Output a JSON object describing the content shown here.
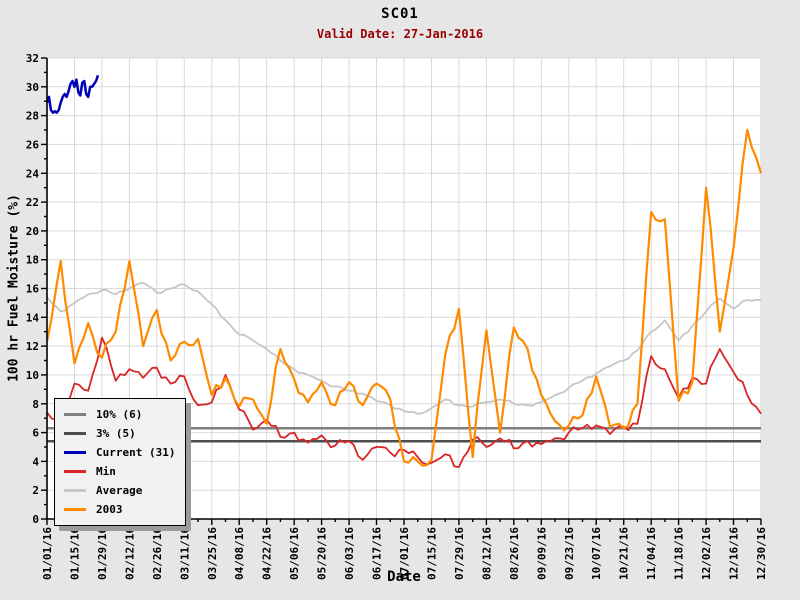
{
  "header": {
    "title": "SC01",
    "subtitle": "Valid Date: 27-Jan-2016"
  },
  "colors": {
    "page_bg": "#e6e6e6",
    "plot_bg": "#ffffff",
    "grid": "#d9d9d9",
    "axis": "#000000",
    "subtitle_text": "#990000",
    "legend_bg": "#f1f1f1",
    "legend_shadow": "#9b9b9b"
  },
  "chart_data": {
    "type": "line",
    "title": "SC01",
    "subtitle": "Valid Date: 27-Jan-2016",
    "xlabel": "Date",
    "ylabel": "100 hr Fuel Moisture (%)",
    "ylim": [
      0,
      32
    ],
    "y_major_tick_step": 2,
    "y_minor_tick_step": 1,
    "grid": true,
    "legend_position": "bottom-left",
    "x_range_days": [
      0,
      364
    ],
    "x_tick_interval_days": 14,
    "x_minor_tick_interval_days": 7,
    "x_tick_labels": [
      "01/01/16",
      "01/15/16",
      "01/29/16",
      "02/12/16",
      "02/26/16",
      "03/11/16",
      "03/25/16",
      "04/08/16",
      "04/22/16",
      "05/06/16",
      "05/20/16",
      "06/03/16",
      "06/17/16",
      "07/01/16",
      "07/15/16",
      "07/29/16",
      "08/12/16",
      "08/26/16",
      "09/09/16",
      "09/23/16",
      "10/07/16",
      "10/21/16",
      "11/04/16",
      "11/18/16",
      "12/02/16",
      "12/16/16",
      "12/30/16"
    ],
    "series": [
      {
        "name": "10% (6)",
        "type": "hline",
        "value": 6.3,
        "color": "#7f7f7f",
        "width": 2.5
      },
      {
        "name": "3% (5)",
        "type": "hline",
        "value": 5.4,
        "color": "#4d4d4d",
        "width": 2.5
      },
      {
        "name": "Current (31)",
        "type": "line",
        "color": "#0000bb",
        "width": 2.5,
        "start_day": 0,
        "step_days": 1,
        "values": [
          28.9,
          29.3,
          28.4,
          28.2,
          28.3,
          28.2,
          28.4,
          28.9,
          29.3,
          29.5,
          29.3,
          29.7,
          30.2,
          30.4,
          30.0,
          30.5,
          29.6,
          29.4,
          30.3,
          30.4,
          29.5,
          29.3,
          30.0,
          30.0,
          30.2,
          30.4,
          30.8
        ]
      },
      {
        "name": "Min",
        "type": "line",
        "color": "#d92525",
        "width": 1.8,
        "start_day": 0,
        "step_days": 7,
        "values": [
          7.4,
          6.6,
          9.4,
          8.9,
          12.6,
          9.6,
          10.4,
          9.8,
          10.5,
          9.4,
          9.9,
          7.9,
          8.1,
          10.0,
          7.6,
          6.2,
          6.9,
          5.7,
          6.0,
          5.3,
          5.8,
          5.1,
          5.4,
          4.1,
          5.0,
          4.6,
          4.8,
          4.3,
          3.9,
          4.5,
          3.6,
          5.5,
          5.0,
          5.6,
          4.9,
          5.4,
          5.2,
          5.6,
          6.0,
          6.3,
          6.5,
          5.9,
          6.4,
          6.6,
          11.3,
          10.4,
          8.4,
          9.8,
          9.4,
          11.8,
          10.2,
          8.6,
          7.3
        ]
      },
      {
        "name": "Average",
        "type": "line",
        "color": "#c6c6c6",
        "width": 1.8,
        "start_day": 0,
        "step_days": 7,
        "values": [
          15.4,
          14.4,
          15.0,
          15.6,
          15.9,
          15.6,
          16.0,
          16.4,
          15.7,
          16.0,
          16.3,
          15.8,
          14.9,
          13.8,
          12.8,
          12.4,
          11.8,
          11.0,
          10.4,
          10.0,
          9.6,
          9.2,
          8.9,
          8.7,
          8.2,
          7.9,
          7.5,
          7.3,
          7.7,
          8.3,
          7.9,
          7.8,
          8.1,
          8.3,
          8.0,
          7.9,
          8.1,
          8.6,
          9.1,
          9.6,
          10.1,
          10.6,
          11.0,
          11.7,
          13.0,
          13.8,
          12.4,
          13.4,
          14.4,
          15.3,
          14.6,
          15.2,
          15.2
        ]
      },
      {
        "name": "2003",
        "type": "line",
        "color": "#ff8a00",
        "width": 2.2,
        "start_day": 0,
        "step_days": 7,
        "values": [
          12.3,
          17.9,
          10.8,
          13.6,
          11.2,
          13.0,
          17.9,
          12.0,
          14.5,
          11.0,
          12.3,
          12.5,
          8.6,
          9.8,
          7.8,
          8.3,
          6.6,
          11.8,
          9.7,
          8.1,
          9.5,
          7.9,
          9.5,
          7.9,
          9.4,
          8.3,
          4.0,
          4.0,
          4.1,
          11.4,
          14.6,
          4.3,
          13.1,
          6.0,
          13.3,
          11.8,
          8.6,
          6.8,
          6.5,
          7.2,
          9.9,
          6.4,
          6.3,
          8.0,
          21.3,
          20.8,
          8.2,
          9.5,
          23.0,
          13.0,
          18.8,
          27.0,
          24.0
        ]
      }
    ]
  }
}
